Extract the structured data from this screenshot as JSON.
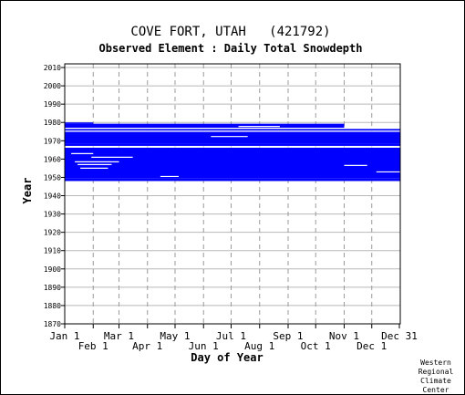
{
  "chart_data": {
    "type": "heatmap",
    "title": "COVE FORT, UTAH   (421792)",
    "subtitle": "Observed Element : Daily Total Snowdepth",
    "xlabel": "Day of Year",
    "ylabel": "Year",
    "ylim": [
      1870,
      2012
    ],
    "xlim": [
      1,
      366
    ],
    "grid": true,
    "yticks": [
      2010,
      2000,
      1990,
      1980,
      1970,
      1960,
      1950,
      1940,
      1930,
      1920,
      1910,
      1900,
      1890,
      1880,
      1870
    ],
    "xticks_upper": [
      {
        "label": "Jan 1",
        "day": 1
      },
      {
        "label": "Mar 1",
        "day": 60
      },
      {
        "label": "May 1",
        "day": 121
      },
      {
        "label": "Jul 1",
        "day": 182
      },
      {
        "label": "Sep 1",
        "day": 244
      },
      {
        "label": "Nov 1",
        "day": 305
      },
      {
        "label": "Dec 31",
        "day": 365
      }
    ],
    "xticks_lower": [
      {
        "label": "Feb 1",
        "day": 32
      },
      {
        "label": "Apr 1",
        "day": 91
      },
      {
        "label": "Jun 1",
        "day": 152
      },
      {
        "label": "Aug 1",
        "day": 213
      },
      {
        "label": "Oct 1",
        "day": 274
      },
      {
        "label": "Dec 1",
        "day": 335
      }
    ],
    "series_color": "#0000ff",
    "observed_blocks": [
      {
        "start_year": 1948,
        "end_year": 1949.6,
        "start_day": 1,
        "end_day": 366
      },
      {
        "start_year": 1949.6,
        "end_year": 1966.2,
        "start_day": 1,
        "end_day": 366
      },
      {
        "start_year": 1967.2,
        "end_year": 1968.6,
        "start_day": 1,
        "end_day": 366
      },
      {
        "start_year": 1968.6,
        "end_year": 1975,
        "start_day": 1,
        "end_day": 366
      },
      {
        "start_year": 1975.5,
        "end_year": 1976.5,
        "start_day": 1,
        "end_day": 366
      },
      {
        "start_year": 1977,
        "end_year": 1979.3,
        "start_day": 1,
        "end_day": 305
      },
      {
        "start_year": 1979.3,
        "end_year": 1980,
        "start_day": 1,
        "end_day": 32
      }
    ],
    "gap_lines": [
      {
        "year": 1966.7,
        "start_day": 1,
        "end_day": 366
      },
      {
        "year": 1975.2,
        "start_day": 1,
        "end_day": 366
      },
      {
        "year": 1976.8,
        "start_day": 1,
        "end_day": 366
      },
      {
        "year": 1950.5,
        "start_day": 105,
        "end_day": 125
      },
      {
        "year": 1955,
        "start_day": 18,
        "end_day": 48
      },
      {
        "year": 1957,
        "start_day": 15,
        "end_day": 52
      },
      {
        "year": 1958.5,
        "start_day": 12,
        "end_day": 60
      },
      {
        "year": 1961,
        "start_day": 30,
        "end_day": 75
      },
      {
        "year": 1963,
        "start_day": 8,
        "end_day": 32
      },
      {
        "year": 1956.5,
        "start_day": 305,
        "end_day": 330
      },
      {
        "year": 1953,
        "start_day": 340,
        "end_day": 366
      },
      {
        "year": 1972.3,
        "start_day": 160,
        "end_day": 200
      },
      {
        "year": 1977.8,
        "start_day": 190,
        "end_day": 235
      }
    ]
  },
  "footer": {
    "credit": [
      "Western",
      "Regional",
      "Climate",
      "Center"
    ]
  }
}
